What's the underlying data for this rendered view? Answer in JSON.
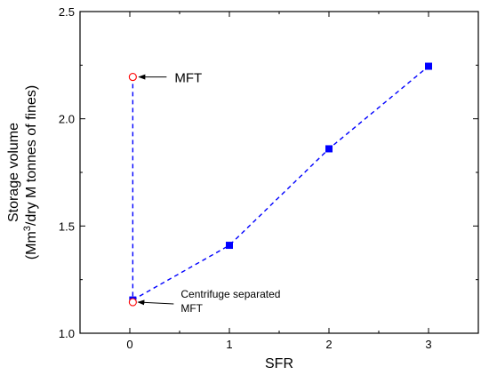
{
  "chart_data": {
    "type": "scatter",
    "xlabel": "SFR",
    "ylabel_line1": "Storage volume",
    "ylabel_line2_pre": "(Mm",
    "ylabel_line2_sup": "3",
    "ylabel_line2_post": "/dry M tonnes of fines)",
    "xlim": [
      -0.5,
      3.5
    ],
    "ylim": [
      1.0,
      2.5
    ],
    "xticks": [
      0,
      1,
      2,
      3
    ],
    "xtick_labels": [
      "0",
      "1",
      "2",
      "3"
    ],
    "yticks": [
      1.0,
      1.5,
      2.0,
      2.5
    ],
    "ytick_labels": [
      "1.0",
      "1.5",
      "2.0",
      "2.5"
    ],
    "grid": false,
    "series": [
      {
        "marker": "filled-square",
        "color": "#0000ff",
        "line_style": "dashed",
        "x": [
          0.03,
          0.03,
          1.0,
          2.0,
          3.0
        ],
        "y": [
          2.2,
          1.155,
          1.41,
          1.86,
          2.245
        ]
      },
      {
        "marker": "open-circle",
        "color": "#ff0000",
        "x": [
          0.03,
          0.03
        ],
        "y": [
          2.195,
          1.145
        ]
      }
    ],
    "annotations": [
      {
        "text": "MFT",
        "x": 0.03,
        "y": 2.195
      },
      {
        "text_line1": "Centrifuge separated",
        "text_line2": "MFT",
        "x": 0.03,
        "y": 1.145
      }
    ]
  }
}
